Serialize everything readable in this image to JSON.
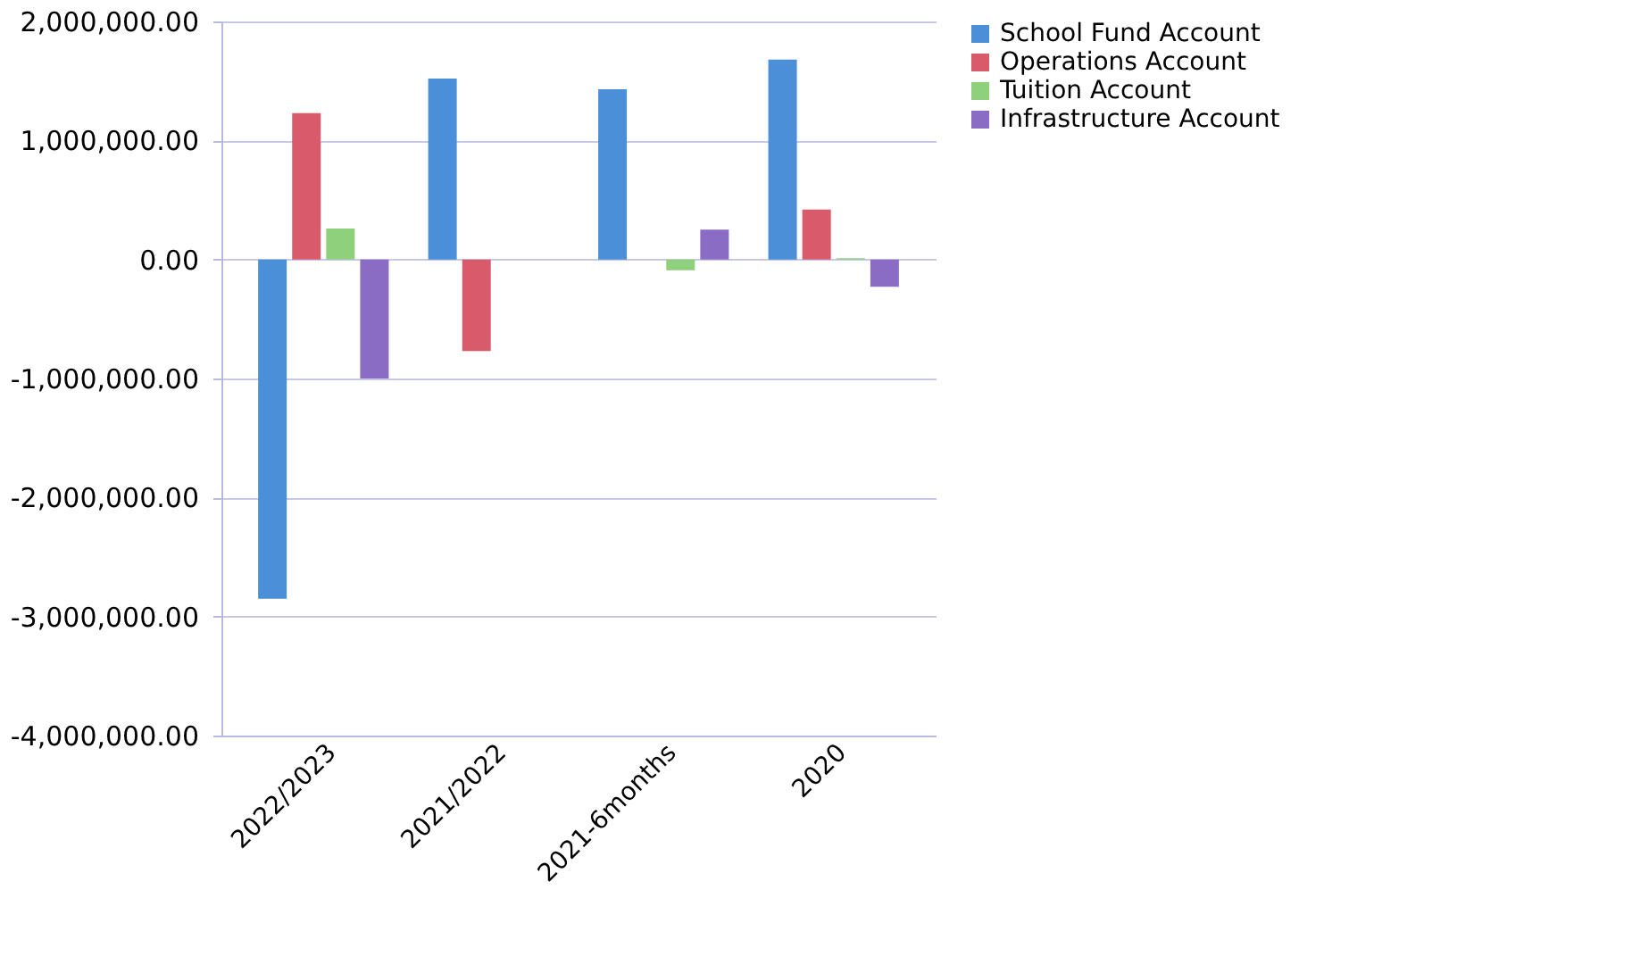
{
  "chart_data": {
    "type": "bar",
    "categories": [
      "2022/2023",
      "2021/2022",
      "2021-6months",
      "2020"
    ],
    "series": [
      {
        "name": "School Fund Account",
        "color": "#4a8fd8",
        "values": [
          -2850000,
          1520000,
          1430000,
          1680000
        ]
      },
      {
        "name": "Operations Account",
        "color": "#d95a6a",
        "values": [
          1230000,
          -770000,
          0,
          420000
        ]
      },
      {
        "name": "Tuition Account",
        "color": "#8fd07a",
        "values": [
          260000,
          0,
          -90000,
          10000
        ]
      },
      {
        "name": "Infrastructure Account",
        "color": "#8a6cc4",
        "values": [
          -1000000,
          0,
          250000,
          -230000
        ]
      }
    ],
    "ylim": [
      -4000000,
      2000000
    ],
    "yticks": [
      {
        "value": -4000000,
        "label": "-4,000,000.00"
      },
      {
        "value": -3000000,
        "label": "-3,000,000.00"
      },
      {
        "value": -2000000,
        "label": "-2,000,000.00"
      },
      {
        "value": -1000000,
        "label": "-1,000,000.00"
      },
      {
        "value": 0,
        "label": "0.00"
      },
      {
        "value": 1000000,
        "label": "1,000,000.00"
      },
      {
        "value": 2000000,
        "label": "2,000,000.00"
      }
    ],
    "grid": "y",
    "legend": "right"
  }
}
